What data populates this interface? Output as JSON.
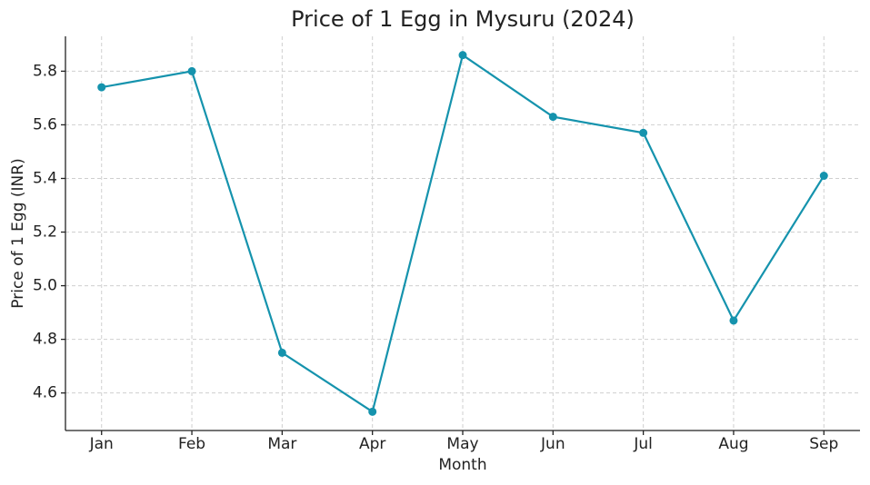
{
  "chart_data": {
    "type": "line",
    "title": "Price of 1 Egg in Mysuru (2024)",
    "x_label": "Month",
    "y_label": "Price of 1 Egg (INR)",
    "categories": [
      "Jan",
      "Feb",
      "Mar",
      "Apr",
      "May",
      "Jun",
      "Jul",
      "Aug",
      "Sep"
    ],
    "values": [
      5.74,
      5.8,
      4.75,
      4.53,
      5.86,
      5.63,
      5.57,
      4.87,
      5.41
    ],
    "color": "#1593ad",
    "ylim": [
      4.46,
      5.93
    ],
    "yticks": [
      4.6,
      4.8,
      {
        "value": 5,
        "label": "5.0"
      },
      5.2,
      5.4,
      5.6,
      5.8
    ],
    "grid": true
  }
}
